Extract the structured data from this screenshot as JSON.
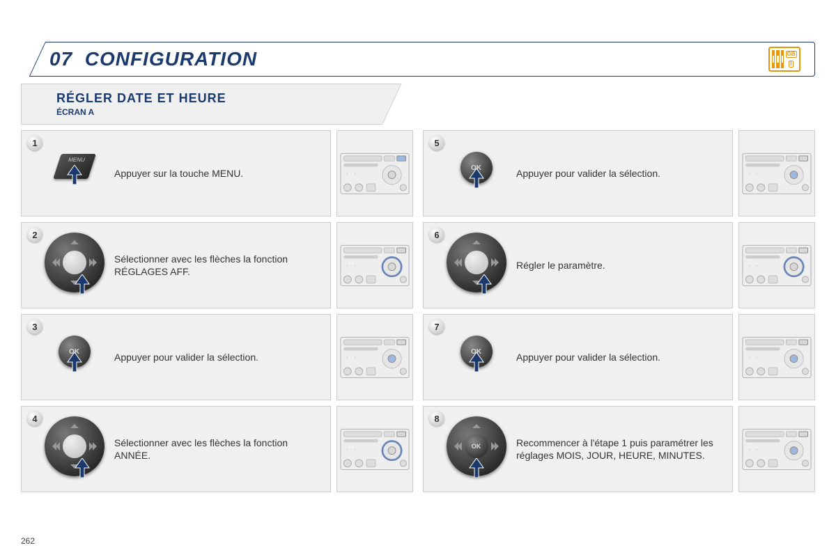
{
  "colors": {
    "navy": "#1a3a6e",
    "orange": "#e8950c",
    "panel_bg": "#f0f0f0",
    "panel_border": "#cccccc",
    "highlight_ok": "#9db8e0",
    "highlight_dpad": "#6a86b8"
  },
  "header": {
    "section_number": "07",
    "section_title": "CONFIGURATION",
    "icon_labels": [
      "GB",
      "I"
    ]
  },
  "subheader": {
    "title": "RÉGLER DATE ET HEURE",
    "subtitle": "ÉCRAN A"
  },
  "steps": [
    {
      "num": "1",
      "control": "menu",
      "text": "Appuyer sur la touche MENU.",
      "highlight": "menu"
    },
    {
      "num": "2",
      "control": "dpad",
      "text": "Sélectionner avec les flèches la fonction RÉGLAGES AFF.",
      "highlight": "dpad"
    },
    {
      "num": "3",
      "control": "ok",
      "text": "Appuyer pour valider la sélection.",
      "highlight": "ok"
    },
    {
      "num": "4",
      "control": "dpad",
      "text": "Sélectionner avec les flèches la fonction ANNÉE.",
      "highlight": "dpad"
    },
    {
      "num": "5",
      "control": "ok",
      "text": "Appuyer pour valider la sélection.",
      "highlight": "ok"
    },
    {
      "num": "6",
      "control": "dpad",
      "text": "Régler le paramètre.",
      "highlight": "dpad"
    },
    {
      "num": "7",
      "control": "ok",
      "text": "Appuyer pour valider la sélection.",
      "highlight": "ok"
    },
    {
      "num": "8",
      "control": "dpad_ok",
      "text": "Recommencer à l'étape 1 puis paramétrer les réglages MOIS, JOUR, HEURE, MINUTES.",
      "highlight": "ok"
    }
  ],
  "menu_label": "MENU",
  "ok_label": "OK",
  "page_number": "262"
}
